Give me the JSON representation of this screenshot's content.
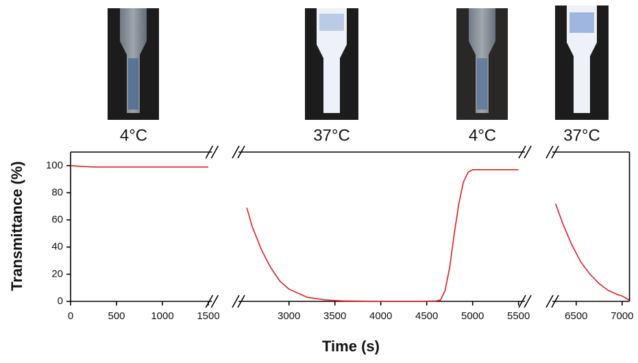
{
  "chart_data": {
    "type": "line",
    "x_label": "Time (s)",
    "y_label": "Transmittance (%)",
    "photo_labels": [
      "4°C",
      "37°C",
      "4°C",
      "37°C"
    ],
    "ylim": [
      0,
      110
    ],
    "yticks": [
      0,
      20,
      40,
      60,
      80,
      100
    ],
    "color": "#e41a1c",
    "segments": [
      {
        "xlim": [
          0,
          1540
        ],
        "xticks": [
          0,
          500,
          1000,
          1500
        ],
        "x": [
          0,
          100,
          250,
          500,
          1000,
          1500
        ],
        "values": [
          100,
          99.5,
          99,
          99,
          99,
          99
        ]
      },
      {
        "xlim": [
          2450,
          5570
        ],
        "xticks": [
          3000,
          3500,
          4000,
          4500,
          5000,
          5500
        ],
        "x": [
          2540,
          2600,
          2700,
          2800,
          2900,
          3000,
          3200,
          3400,
          3600,
          4000,
          4400,
          4600,
          4650,
          4700,
          4750,
          4800,
          4850,
          4900,
          4950,
          5000,
          5200,
          5500
        ],
        "values": [
          69,
          55,
          38,
          25,
          15,
          9,
          3,
          1,
          0.3,
          0,
          0,
          0.3,
          1,
          8,
          25,
          50,
          72,
          88,
          95,
          97,
          97,
          97
        ]
      },
      {
        "xlim": [
          6240,
          7080
        ],
        "xticks": [
          6500,
          7000
        ],
        "x": [
          6275,
          6350,
          6450,
          6550,
          6650,
          6750,
          6850,
          6950,
          7000,
          7075
        ],
        "values": [
          72,
          58,
          42,
          29,
          20,
          13,
          8,
          5,
          4,
          1
        ]
      }
    ]
  }
}
